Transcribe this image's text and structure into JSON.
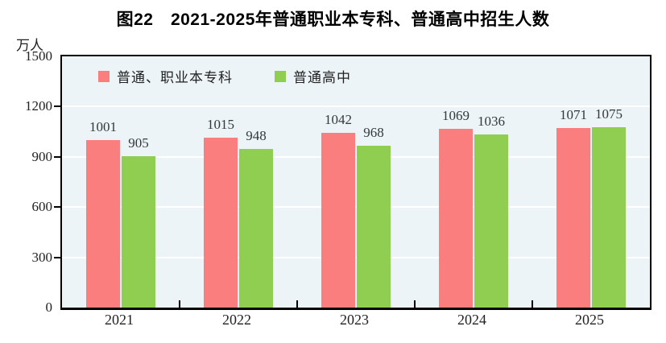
{
  "chart_data": {
    "type": "bar",
    "title": "图22　2021-2025年普通职业本专科、普通高中招生人数",
    "unit_label": "万人",
    "categories": [
      "2021",
      "2022",
      "2023",
      "2024",
      "2025"
    ],
    "series": [
      {
        "name": "普通、职业本专科",
        "color": "#FB7E7E",
        "values": [
          1001,
          1015,
          1042,
          1069,
          1071
        ]
      },
      {
        "name": "普通高中",
        "color": "#8FCE51",
        "values": [
          905,
          948,
          968,
          1036,
          1075
        ]
      }
    ],
    "ylim": [
      0,
      1500
    ],
    "yticks": [
      0,
      300,
      600,
      900,
      1200,
      1500
    ],
    "grid": true,
    "legend_position": "top-left-inside",
    "colors": {
      "plot_background": "#EDF4F8",
      "gridline": "#FFFFFF",
      "axis": "#000000",
      "value_label": "#33383d",
      "text": "#222222"
    }
  }
}
